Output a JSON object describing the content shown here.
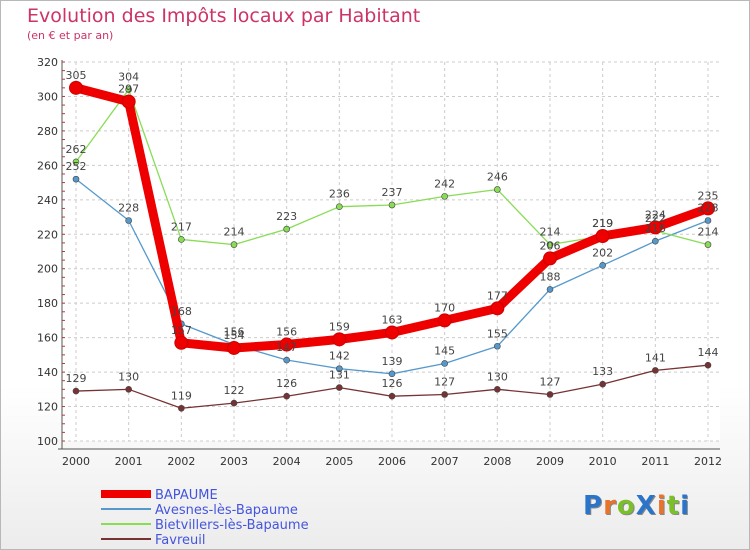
{
  "title": "Evolution des Impôts locaux par Habitant",
  "subtitle": "(en € et par an)",
  "logo": {
    "text": "ProXiti",
    "colors": [
      "#2a74c9",
      "#e8732a",
      "#7bbf2a",
      "#2a74c9",
      "#e8732a",
      "#7bbf2a",
      "#2a74c9"
    ]
  },
  "chart_data": {
    "type": "line",
    "title": "Evolution des Impôts locaux par Habitant",
    "subtitle": "(en € et par an)",
    "x": [
      "2000",
      "2001",
      "2002",
      "2003",
      "2004",
      "2005",
      "2006",
      "2007",
      "2008",
      "2009",
      "2010",
      "2011",
      "2012"
    ],
    "ylim": [
      100,
      320
    ],
    "yticks": [
      "100",
      "120",
      "140",
      "160",
      "180",
      "200",
      "220",
      "240",
      "260",
      "280",
      "300",
      "320"
    ],
    "grid": true,
    "legend": "bottom-left",
    "series": [
      {
        "name": "BAPAUME",
        "color": "#ee0000",
        "values": [
          305,
          297,
          157,
          154,
          156,
          159,
          163,
          170,
          177,
          206,
          219,
          224,
          235
        ]
      },
      {
        "name": "Avesnes-lès-Bapaume",
        "color": "#5599cc",
        "values": [
          252,
          228,
          168,
          156,
          147,
          142,
          139,
          145,
          155,
          188,
          202,
          216,
          228
        ]
      },
      {
        "name": "Bietvillers-lès-Bapaume",
        "color": "#88dd55",
        "values": [
          262,
          304,
          217,
          214,
          223,
          236,
          237,
          242,
          246,
          214,
          219,
          222,
          214
        ]
      },
      {
        "name": "Favreuil",
        "color": "#773333",
        "values": [
          129,
          130,
          119,
          122,
          126,
          131,
          126,
          127,
          130,
          127,
          133,
          141,
          144
        ]
      }
    ]
  }
}
